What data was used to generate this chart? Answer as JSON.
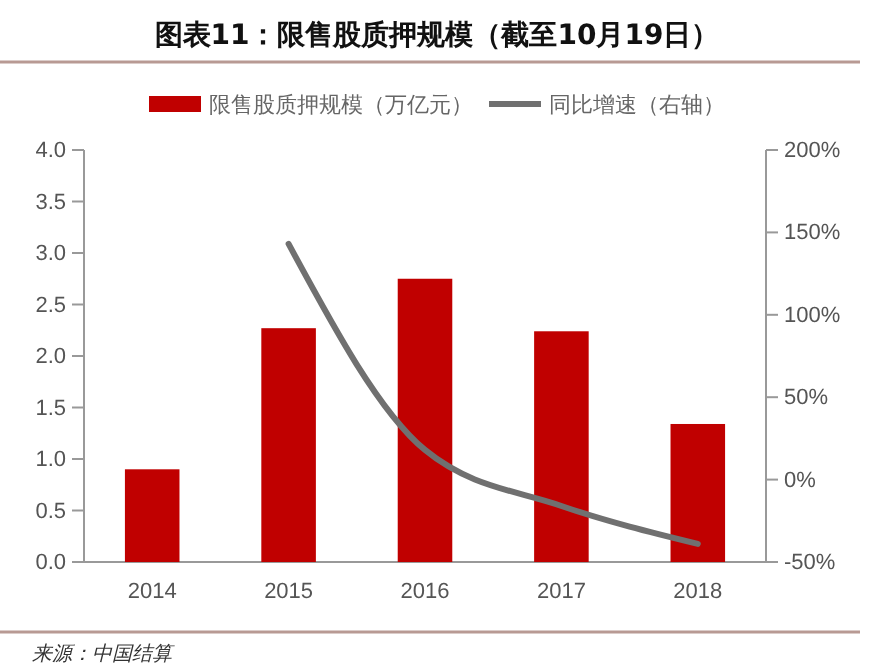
{
  "chart_data": {
    "type": "bar",
    "title": "图表11：限售股质押规模（截至10月19日）",
    "categories": [
      "2014",
      "2015",
      "2016",
      "2017",
      "2018"
    ],
    "series": [
      {
        "name": "限售股质押规模（万亿元）",
        "color": "#c00000",
        "values": [
          0.9,
          2.27,
          2.75,
          2.24,
          1.34
        ]
      },
      {
        "name": "同比增速（右轴）",
        "type": "line",
        "axis": "y2",
        "color": "#707070",
        "values": [
          null,
          143,
          18,
          -16,
          -39
        ]
      }
    ],
    "ylim": [
      0,
      4
    ],
    "yticks": [
      {
        "value": 0,
        "label": "0.0"
      },
      {
        "value": 0.5,
        "label": "0.5"
      },
      {
        "value": 1,
        "label": "1.0"
      },
      {
        "value": 1.5,
        "label": "1.5"
      },
      {
        "value": 2,
        "label": "2.0"
      },
      {
        "value": 2.5,
        "label": "2.5"
      },
      {
        "value": 3,
        "label": "3.0"
      },
      {
        "value": 3.5,
        "label": "3.5"
      },
      {
        "value": 4,
        "label": "4.0"
      }
    ],
    "y2lim": [
      -50,
      200
    ],
    "y2ticks": [
      {
        "value": -50,
        "label": "-50%"
      },
      {
        "value": 0,
        "label": "0%"
      },
      {
        "value": 50,
        "label": "50%"
      },
      {
        "value": 100,
        "label": "100%"
      },
      {
        "value": 150,
        "label": "150%"
      },
      {
        "value": 200,
        "label": "200%"
      }
    ],
    "legend": "top",
    "grid": false,
    "annotations": [
      "来源：中国结算"
    ]
  }
}
